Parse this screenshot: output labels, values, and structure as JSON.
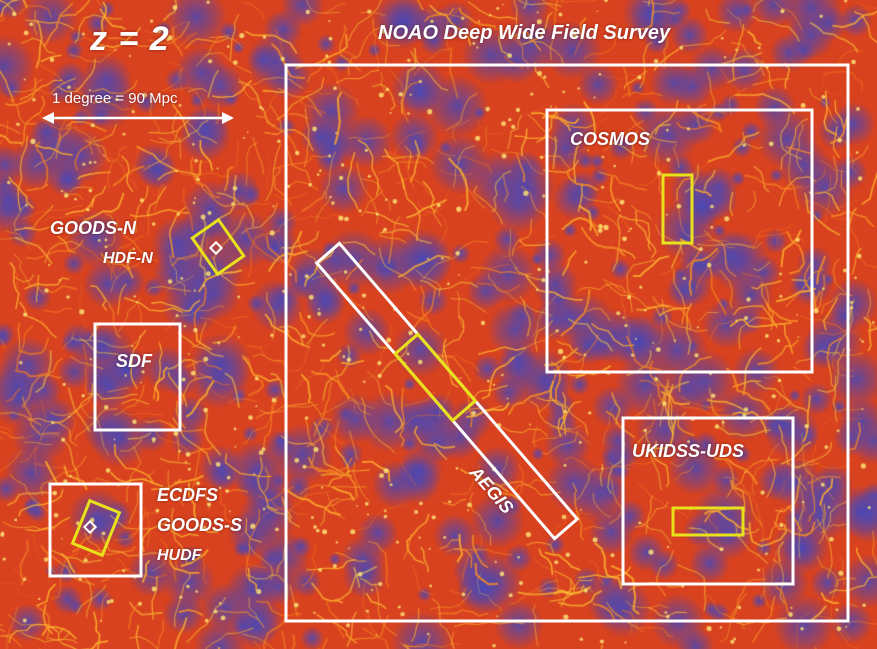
{
  "redshift_label": "z = 2",
  "survey_title": "NOAO Deep Wide Field Survey",
  "scale_bar": {
    "label": "1 degree = 90 Mpc"
  },
  "fields": {
    "goods_n": "GOODS-N",
    "hdf_n": "HDF-N",
    "sdf": "SDF",
    "ecdfs": "ECDFS",
    "goods_s": "GOODS-S",
    "hudf": "HUDF",
    "aegis": "AEGIS",
    "cosmos": "COSMOS",
    "ukidss_uds": "UKIDSS-UDS"
  },
  "colors": {
    "background_base": "#d9421e",
    "filament": "#ffd23c",
    "void": "#4a4bb8",
    "outline_white": "#ffffff",
    "outline_yellow": "#e8e21a"
  }
}
